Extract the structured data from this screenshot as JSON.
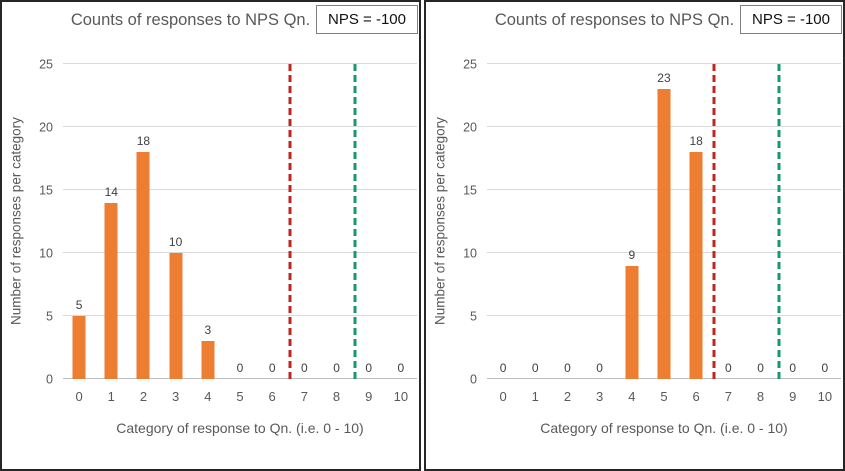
{
  "colors": {
    "bar": "#ED7D31",
    "gridline": "#D9D9D9",
    "axis_line": "#BFBFBF",
    "text_gray": "#595959",
    "data_label_gray": "#404040",
    "red_reference_line": "#C0251F",
    "green_reference_line": "#18996A",
    "panel_border": "#262626"
  },
  "chart_data": [
    {
      "type": "bar",
      "title": "Counts of responses to NPS Qn.",
      "badge": "NPS = -100",
      "xlabel": "Category of response to Qn. (i.e. 0 - 10)",
      "ylabel": "Number of responses per category",
      "categories": [
        "0",
        "1",
        "2",
        "3",
        "4",
        "5",
        "6",
        "7",
        "8",
        "9",
        "10"
      ],
      "values": [
        5,
        14,
        18,
        10,
        3,
        0,
        0,
        0,
        0,
        0,
        0
      ],
      "yticks": [
        0,
        5,
        10,
        15,
        20,
        25
      ],
      "ylim": [
        0,
        25
      ],
      "grid": true,
      "legend": "none",
      "reference_lines": [
        {
          "name": "red-dashed-reference",
          "x": 6.55,
          "color": "#C0251F",
          "style": "dashed"
        },
        {
          "name": "green-dashed-reference",
          "x": 8.58,
          "color": "#18996A",
          "style": "dashed"
        }
      ]
    },
    {
      "type": "bar",
      "title": "Counts of responses to NPS Qn.",
      "badge": "NPS = -100",
      "xlabel": "Category of response to Qn. (i.e. 0 - 10)",
      "ylabel": "Number of responses per category",
      "categories": [
        "0",
        "1",
        "2",
        "3",
        "4",
        "5",
        "6",
        "7",
        "8",
        "9",
        "10"
      ],
      "values": [
        0,
        0,
        0,
        0,
        9,
        23,
        18,
        0,
        0,
        0,
        0
      ],
      "yticks": [
        0,
        5,
        10,
        15,
        20,
        25
      ],
      "ylim": [
        0,
        25
      ],
      "grid": true,
      "legend": "none",
      "reference_lines": [
        {
          "name": "red-dashed-reference",
          "x": 6.55,
          "color": "#C0251F",
          "style": "dashed"
        },
        {
          "name": "green-dashed-reference",
          "x": 8.58,
          "color": "#18996A",
          "style": "dashed"
        }
      ]
    }
  ]
}
